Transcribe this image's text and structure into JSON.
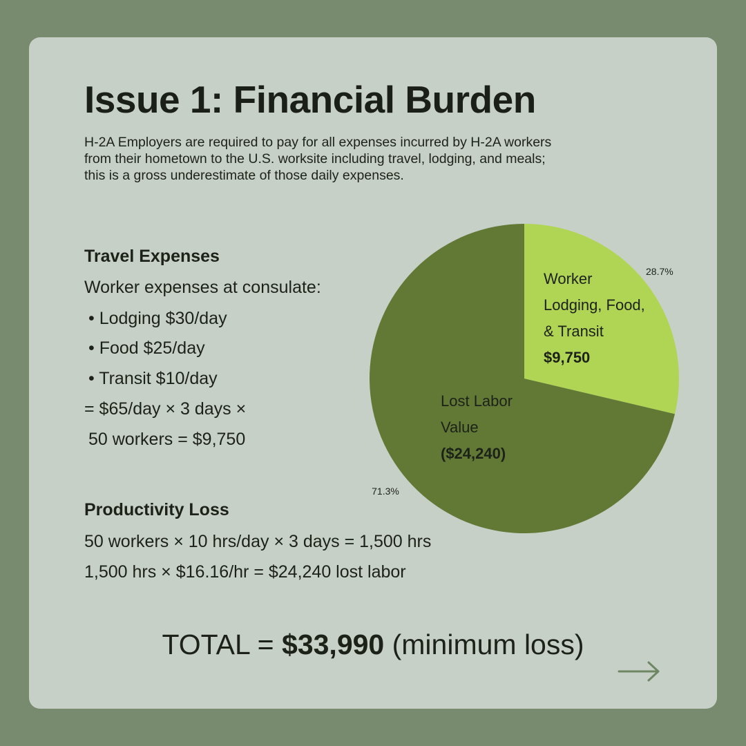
{
  "title": "Issue 1: Financial Burden",
  "intro": "H-2A Employers are required to pay for all expenses incurred by H-2A workers from their hometown to the U.S. worksite including travel, lodging, and meals; this is a gross underestimate of those daily expenses.",
  "travel": {
    "heading": "Travel Expenses",
    "lines": [
      "Worker expenses at consulate:",
      "• Lodging $30/day",
      "• Food $25/day",
      "• Transit $10/day",
      "= $65/day × 3 days ×",
      "50 workers = $9,750"
    ]
  },
  "productivity": {
    "heading": "Productivity Loss",
    "lines": [
      "50 workers × 10 hrs/day × 3 days = 1,500 hrs",
      "1,500 hrs × $16.16/hr = $24,240 lost labor"
    ]
  },
  "total": {
    "prefix": "TOTAL = ",
    "amount": "$33,990",
    "suffix": " (minimum loss)"
  },
  "next_icon": "arrow-right-icon",
  "chart_data": {
    "type": "pie",
    "slices": [
      {
        "label_lines": [
          "Worker",
          "Lodging, Food,",
          "& Transit"
        ],
        "value_label": "$9,750",
        "value": 9750,
        "percent": "28.7%",
        "color": "#b0d454"
      },
      {
        "label_lines": [
          "Lost Labor",
          "Value"
        ],
        "value_label": "($24,240)",
        "value": 24240,
        "percent": "71.3%",
        "color": "#627936"
      }
    ]
  }
}
